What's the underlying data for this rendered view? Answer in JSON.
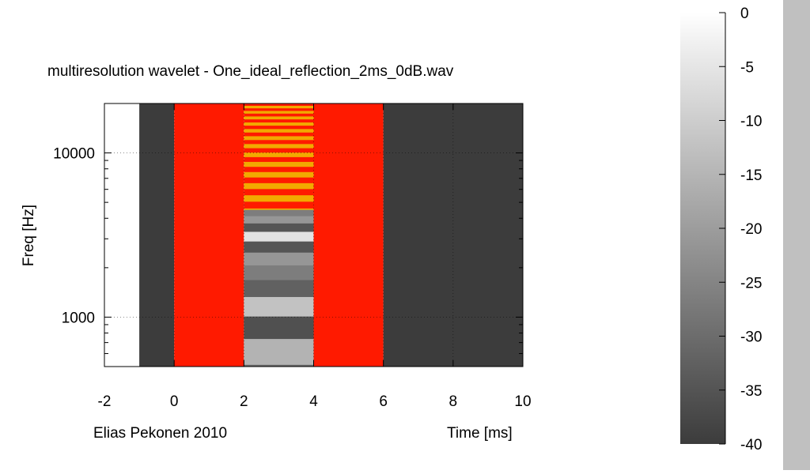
{
  "chart_data": {
    "type": "heatmap",
    "title": "multiresolution wavelet -   One_ideal_reflection_2ms_0dB.wav",
    "xlabel": "Time [ms]",
    "ylabel": "Freq [Hz]",
    "credit": "Elias Pekonen 2010",
    "x_ticks": [
      -2,
      0,
      2,
      4,
      6,
      8,
      10
    ],
    "x_tick_labels": [
      "-2",
      "0",
      "2",
      "4",
      "6",
      "8",
      "10"
    ],
    "xlim": [
      -2,
      10
    ],
    "y_scale": "log",
    "ylim": [
      500,
      20000
    ],
    "y_ticks": [
      1000,
      10000
    ],
    "y_tick_labels": [
      "1000",
      "10000"
    ],
    "grid": true,
    "regions": [
      {
        "x0": -2,
        "x1": -1,
        "level_db": 0,
        "pattern": "solid"
      },
      {
        "x0": -1,
        "x1": 0,
        "level_db": -40,
        "pattern": "solid"
      },
      {
        "x0": 0,
        "x1": 2,
        "level_db": -7,
        "pattern": "solid"
      },
      {
        "x0": 2,
        "x1": 4,
        "pattern": "interference-bands"
      },
      {
        "x0": 4,
        "x1": 6,
        "level_db": -7,
        "pattern": "solid"
      },
      {
        "x0": 6,
        "x1": 10,
        "level_db": -40,
        "pattern": "solid"
      }
    ],
    "colorbar": {
      "range": [
        -40,
        0
      ],
      "ticks": [
        0,
        -5,
        -10,
        -15,
        -20,
        -25,
        -30,
        -35,
        -40
      ],
      "tick_labels": [
        "0",
        "-5",
        "-10",
        "-15",
        "-20",
        "-25",
        "-30",
        "-35",
        "-40"
      ],
      "colors": {
        "high": "#ffffff",
        "low": "#3c3c3c",
        "hot": "#ff1a00"
      }
    }
  }
}
